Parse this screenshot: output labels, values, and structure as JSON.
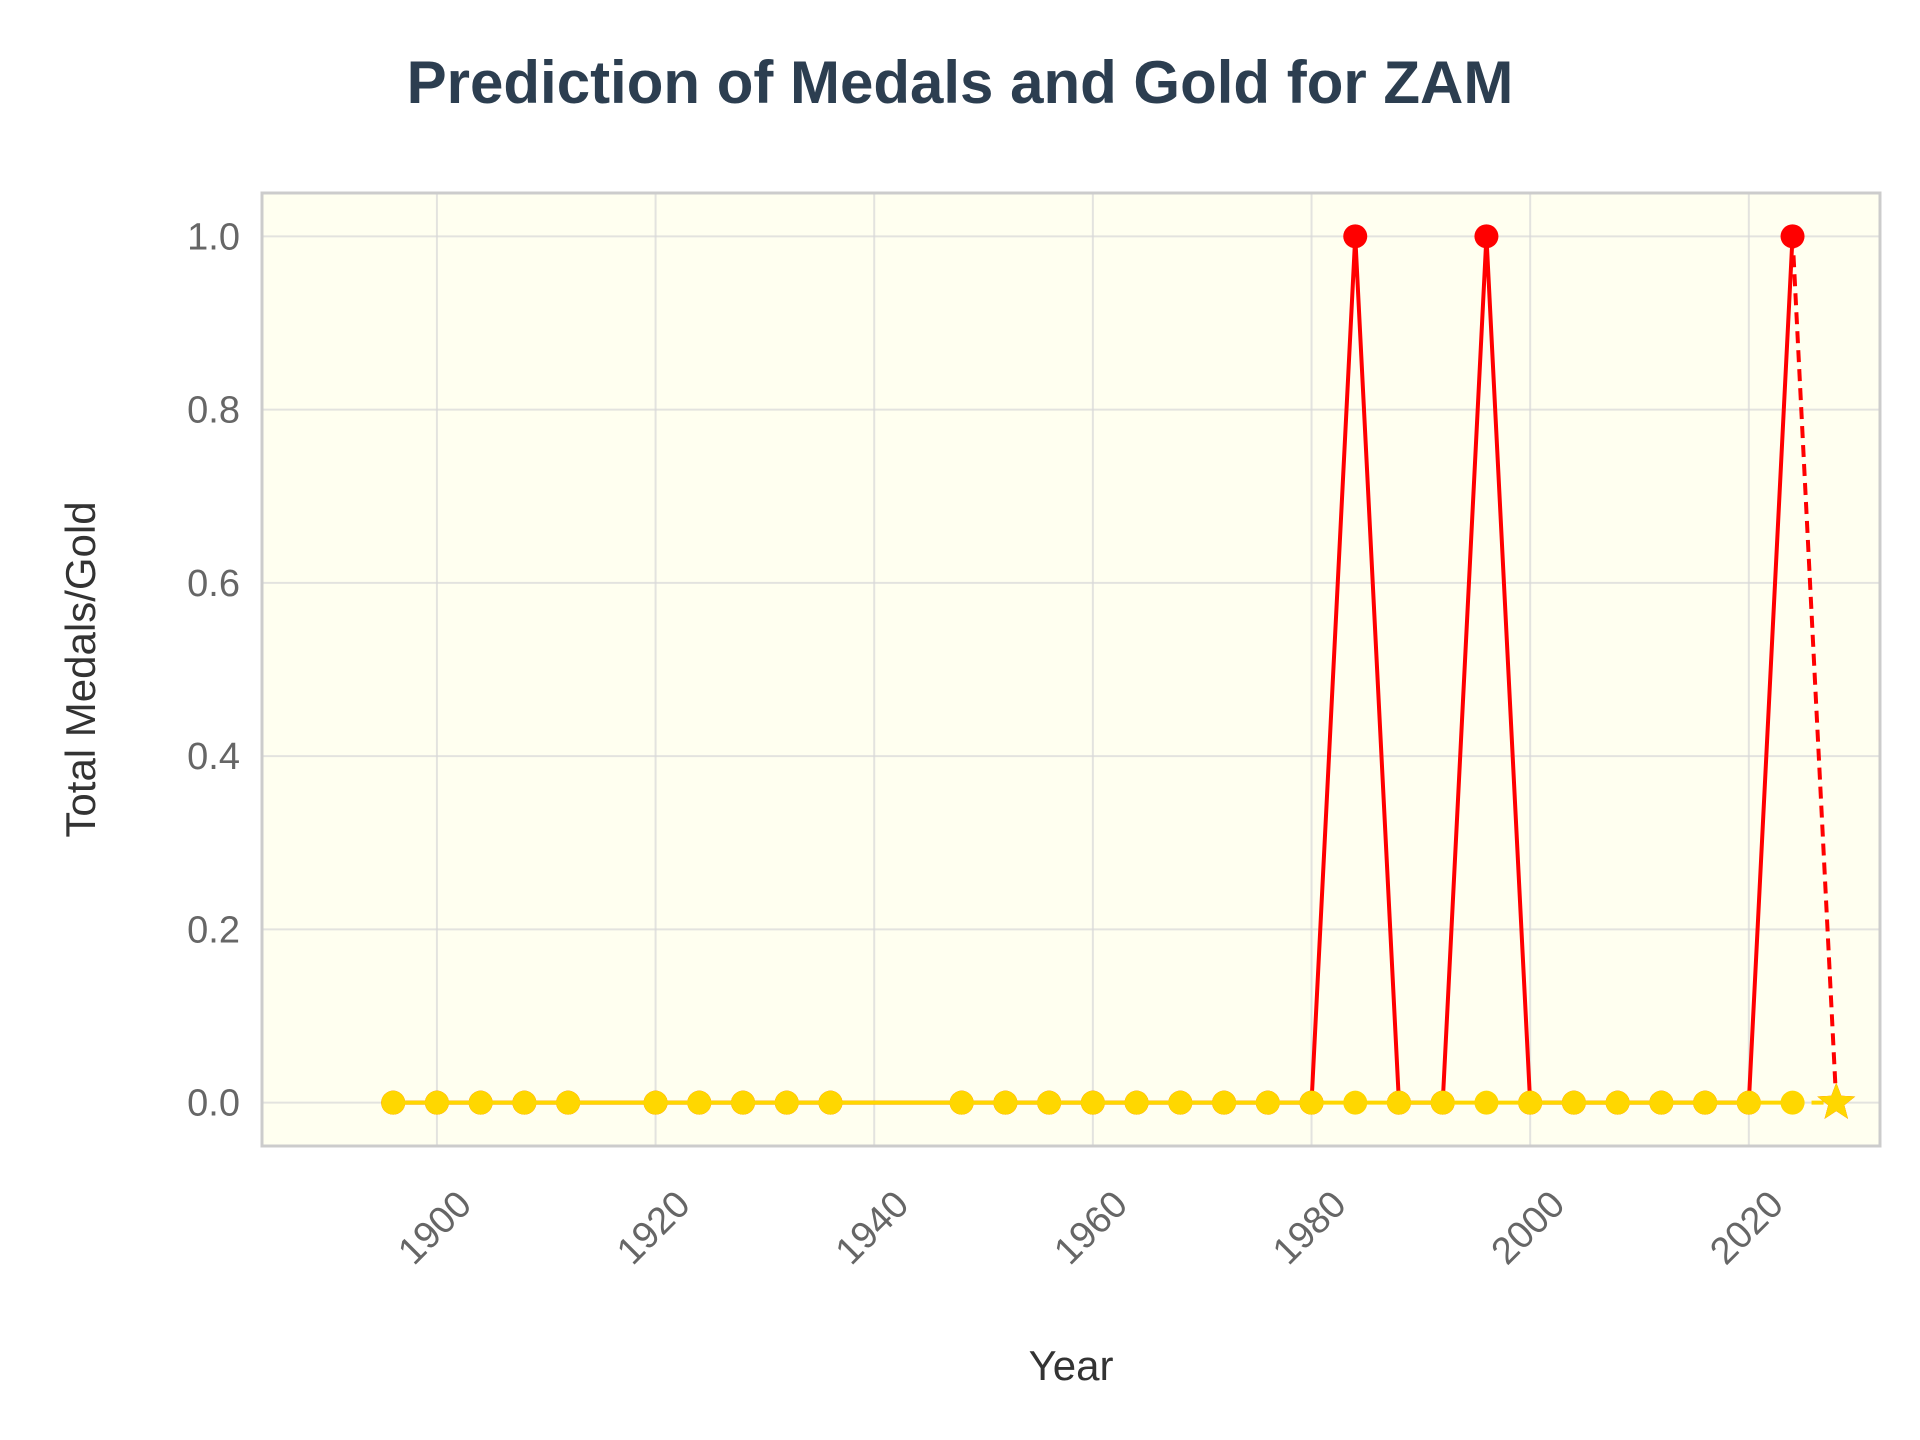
{
  "chart_data": {
    "type": "line",
    "title": "Prediction of Medals and Gold for ZAM",
    "xlabel": "Year",
    "ylabel": "Total Medals/Gold",
    "xlim": [
      1884,
      2032
    ],
    "ylim": [
      -0.05,
      1.05
    ],
    "xticks": [
      1900,
      1920,
      1940,
      1960,
      1980,
      2000,
      2020
    ],
    "yticks": [
      0.0,
      0.2,
      0.4,
      0.6,
      0.8,
      1.0
    ],
    "xtick_labels": [
      "1900",
      "1920",
      "1940",
      "1960",
      "1980",
      "2000",
      "2020"
    ],
    "ytick_labels": [
      "0.0",
      "0.2",
      "0.4",
      "0.6",
      "0.8",
      "1.0"
    ],
    "grid": true,
    "background": "#fffff0",
    "series": [
      {
        "color": "#ff0000",
        "x": [
          1896,
          1900,
          1904,
          1908,
          1912,
          1920,
          1924,
          1928,
          1932,
          1936,
          1948,
          1952,
          1956,
          1960,
          1964,
          1968,
          1972,
          1976,
          1980,
          1984,
          1988,
          1992,
          1996,
          2000,
          2004,
          2008,
          2012,
          2016,
          2020,
          2024
        ],
        "y": [
          0,
          0,
          0,
          0,
          0,
          0,
          0,
          0,
          0,
          0,
          0,
          0,
          0,
          0,
          0,
          0,
          0,
          0,
          0,
          1,
          0,
          0,
          1,
          0,
          0,
          0,
          0,
          0,
          0,
          1
        ]
      },
      {
        "color": "#ffd700",
        "x": [
          1896,
          1900,
          1904,
          1908,
          1912,
          1920,
          1924,
          1928,
          1932,
          1936,
          1948,
          1952,
          1956,
          1960,
          1964,
          1968,
          1972,
          1976,
          1980,
          1984,
          1988,
          1992,
          1996,
          2000,
          2004,
          2008,
          2012,
          2016,
          2020,
          2024
        ],
        "y": [
          0,
          0,
          0,
          0,
          0,
          0,
          0,
          0,
          0,
          0,
          0,
          0,
          0,
          0,
          0,
          0,
          0,
          0,
          0,
          0,
          0,
          0,
          0,
          0,
          0,
          0,
          0,
          0,
          0,
          0
        ]
      }
    ],
    "predictions": [
      {
        "series_color": "#ff0000",
        "from": [
          2024,
          1
        ],
        "to": [
          2028,
          0
        ],
        "marker": "star"
      },
      {
        "series_color": "#ffd700",
        "from": [
          2024,
          0
        ],
        "to": [
          2028,
          0
        ],
        "marker": "star"
      }
    ]
  }
}
